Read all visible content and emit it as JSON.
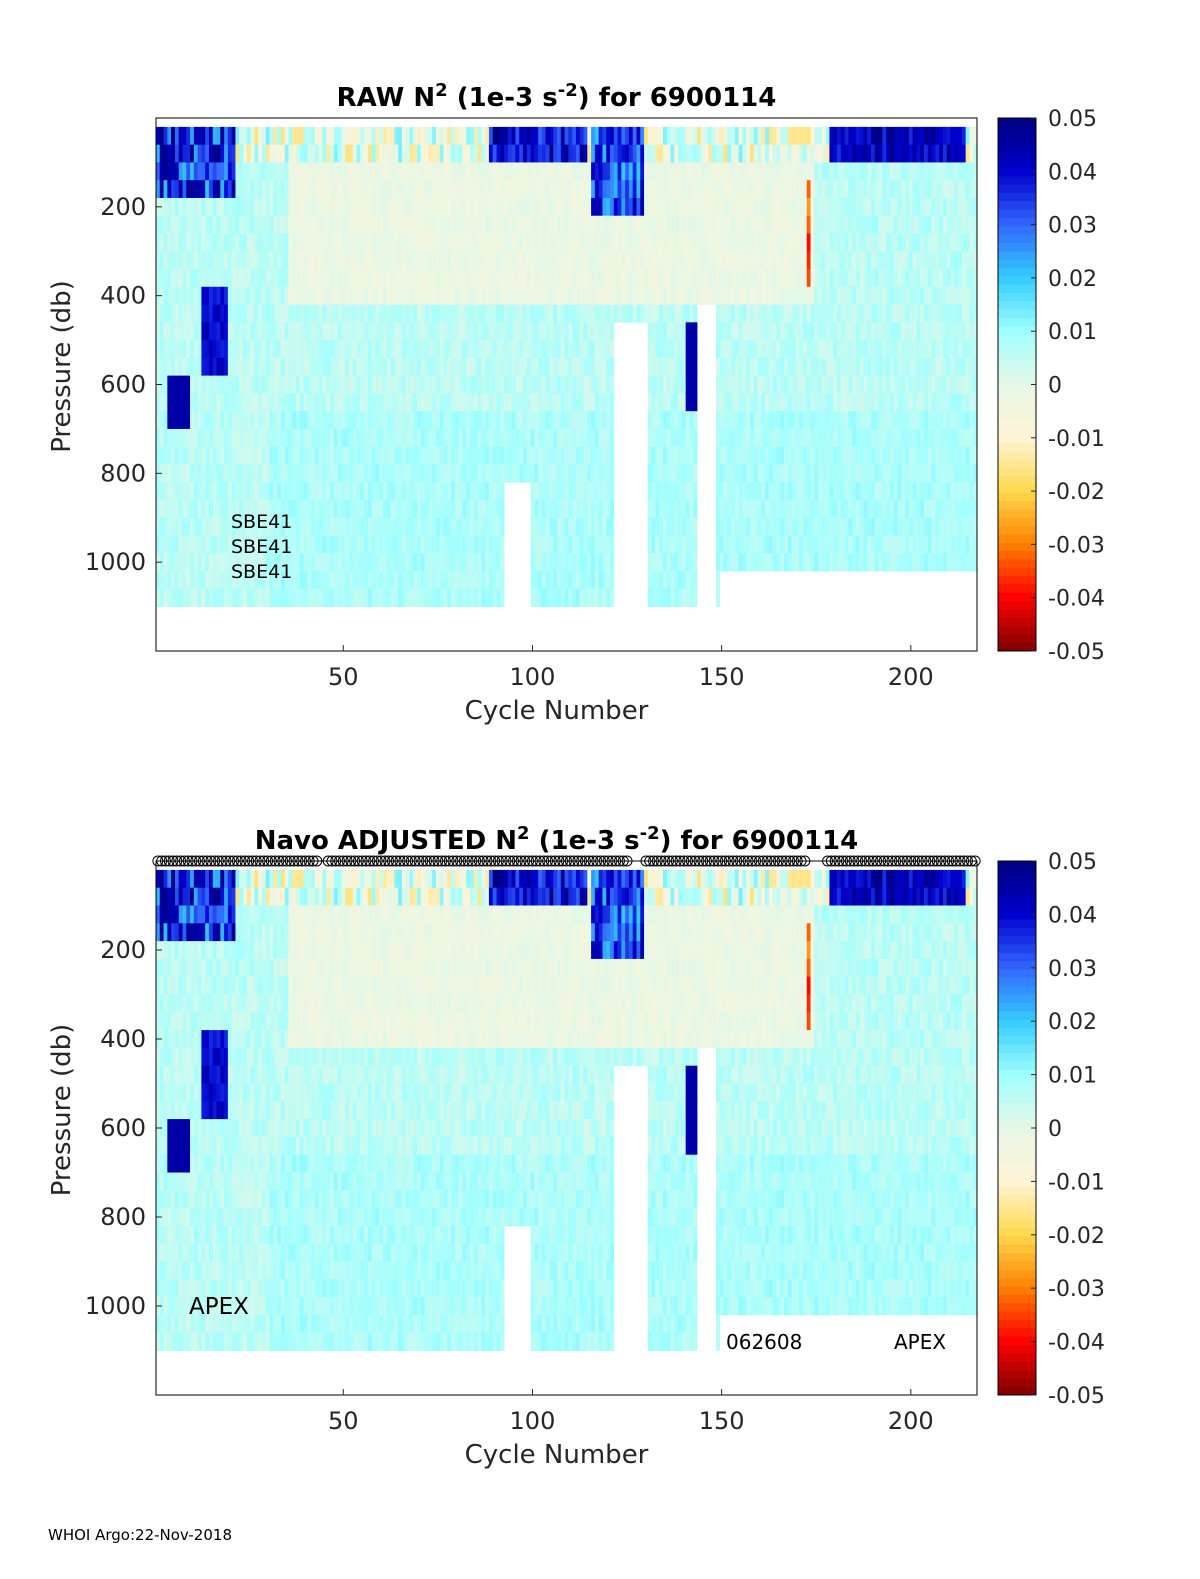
{
  "colors": {
    "colormap": [
      "#7f0000",
      "#ff0000",
      "#ff8000",
      "#ffd94d",
      "#fff4d6",
      "#e6f7e6",
      "#9fffff",
      "#33ccff",
      "#3366ff",
      "#0000cc",
      "#00007f"
    ],
    "axis": "#262626",
    "frame": "#000000"
  },
  "footer": "WHOI Argo:22-Nov-2018",
  "chart_data": [
    {
      "type": "heatmap",
      "title_parts": [
        "RAW N",
        "2",
        " (1e-3 s",
        "-2",
        ") for 6900114"
      ],
      "xlabel": "Cycle Number",
      "ylabel": "Pressure (db)",
      "xlim": [
        1,
        217
      ],
      "ylim": [
        0,
        1200
      ],
      "xticks": [
        50,
        100,
        150,
        200
      ],
      "yticks": [
        200,
        400,
        600,
        800,
        1000
      ],
      "clim": [
        -0.05,
        0.05
      ],
      "cticks": [
        "0.05",
        "0.04",
        "0.03",
        "0.02",
        "0.01",
        "0",
        "-0.01",
        "-0.02",
        "-0.03",
        "-0.04",
        "-0.05"
      ],
      "annotations": [
        "SBE41",
        "SBE41",
        "SBE41"
      ],
      "markers_row": false
    },
    {
      "type": "heatmap",
      "title_parts": [
        "Navo  ADJUSTED N",
        "2",
        " (1e-3 s",
        "-2",
        ") for 6900114"
      ],
      "xlabel": "Cycle Number",
      "ylabel": "Pressure (db)",
      "xlim": [
        1,
        217
      ],
      "ylim": [
        0,
        1200
      ],
      "xticks": [
        50,
        100,
        150,
        200
      ],
      "yticks": [
        200,
        400,
        600,
        800,
        1000
      ],
      "clim": [
        -0.05,
        0.05
      ],
      "cticks": [
        "0.05",
        "0.04",
        "0.03",
        "0.02",
        "0.01",
        "0",
        "-0.01",
        "-0.02",
        "-0.03",
        "-0.04",
        "-0.05"
      ],
      "annotations": [
        "APEX",
        "062608",
        "APEX"
      ],
      "markers_row": true
    }
  ]
}
